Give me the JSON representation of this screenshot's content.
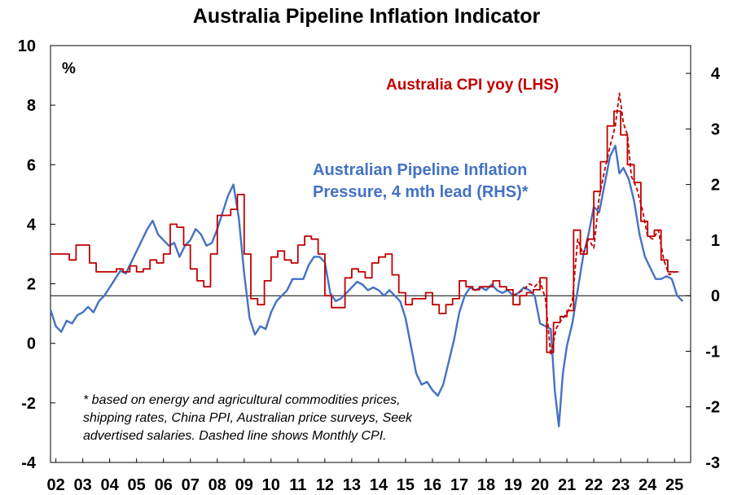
{
  "chart_data": {
    "type": "line",
    "title": "Australia Pipeline Inflation Indicator",
    "unit_label": "%",
    "x_tick_labels": [
      "02",
      "03",
      "04",
      "05",
      "06",
      "07",
      "08",
      "09",
      "10",
      "11",
      "12",
      "13",
      "14",
      "15",
      "16",
      "17",
      "18",
      "19",
      "20",
      "21",
      "22",
      "23",
      "24",
      "25"
    ],
    "x_range": [
      2001.8,
      2025.6
    ],
    "y_left": {
      "range": [
        -4,
        10
      ],
      "ticks": [
        -4,
        -2,
        0,
        2,
        4,
        6,
        8,
        10
      ]
    },
    "y_right": {
      "range": [
        -3,
        4.5
      ],
      "ticks": [
        -3,
        -2,
        -1,
        0,
        1,
        2,
        3,
        4
      ]
    },
    "zero_line_axis": "right",
    "grid": false,
    "annotation": [
      "* based on energy and agricultural commodities prices,",
      "shipping rates, China PPI, Australian price surveys, Seek",
      "advertised salaries. Dashed line shows Monthly CPI."
    ],
    "series": [
      {
        "name": "Australia CPI yoy (LHS)",
        "axis": "left",
        "style": "step",
        "color": "#c00000",
        "x": [
          2001.8,
          2002.5,
          2002.75,
          2003.25,
          2003.5,
          2003.75,
          2004.0,
          2004.25,
          2004.5,
          2004.75,
          2005.0,
          2005.25,
          2005.5,
          2005.75,
          2006.0,
          2006.25,
          2006.5,
          2006.75,
          2007.0,
          2007.25,
          2007.5,
          2007.75,
          2008.0,
          2008.25,
          2008.5,
          2008.75,
          2009.0,
          2009.25,
          2009.5,
          2009.75,
          2010.0,
          2010.25,
          2010.5,
          2010.75,
          2011.0,
          2011.25,
          2011.5,
          2011.75,
          2012.0,
          2012.25,
          2012.5,
          2012.75,
          2013.0,
          2013.25,
          2013.5,
          2013.75,
          2014.0,
          2014.25,
          2014.5,
          2014.75,
          2015.0,
          2015.25,
          2015.5,
          2015.75,
          2016.0,
          2016.25,
          2016.5,
          2016.75,
          2017.0,
          2017.25,
          2017.5,
          2017.75,
          2018.0,
          2018.25,
          2018.5,
          2018.75,
          2019.0,
          2019.25,
          2019.5,
          2019.75,
          2020.0,
          2020.25,
          2020.5,
          2020.75,
          2021.0,
          2021.25,
          2021.5,
          2021.75,
          2022.0,
          2022.25,
          2022.5,
          2022.75,
          2023.0,
          2023.25,
          2023.5,
          2023.75,
          2024.0,
          2024.25,
          2024.5,
          2024.75,
          2025.0
        ],
        "y": [
          3.0,
          2.8,
          3.3,
          2.7,
          2.4,
          2.4,
          2.4,
          2.5,
          2.4,
          2.6,
          2.4,
          2.5,
          2.8,
          2.7,
          3.0,
          4.0,
          3.9,
          3.3,
          2.5,
          2.1,
          1.9,
          3.0,
          4.3,
          4.3,
          4.5,
          5.0,
          3.0,
          1.5,
          1.3,
          2.1,
          2.9,
          3.1,
          2.8,
          2.7,
          3.3,
          3.6,
          3.5,
          3.0,
          1.6,
          1.2,
          1.2,
          2.2,
          2.5,
          2.4,
          2.2,
          2.7,
          2.9,
          3.0,
          2.3,
          1.7,
          1.3,
          1.5,
          1.5,
          1.7,
          1.3,
          1.0,
          1.3,
          1.5,
          2.1,
          1.9,
          1.8,
          1.9,
          1.9,
          2.1,
          1.9,
          1.8,
          1.3,
          1.6,
          1.7,
          1.8,
          2.2,
          -0.3,
          0.7,
          0.9,
          1.1,
          3.8,
          3.0,
          3.5,
          5.1,
          6.1,
          7.3,
          7.8,
          7.0,
          6.0,
          5.4,
          4.1,
          3.6,
          3.8,
          2.8,
          2.4,
          2.4
        ]
      },
      {
        "name": "Monthly CPI",
        "axis": "left",
        "style": "dashed",
        "color": "#c00000",
        "x": [
          2019.0,
          2019.2,
          2019.4,
          2019.6,
          2019.8,
          2020.0,
          2020.2,
          2020.4,
          2020.6,
          2020.8,
          2021.0,
          2021.2,
          2021.4,
          2021.6,
          2021.8,
          2022.0,
          2022.2,
          2022.4,
          2022.6,
          2022.8,
          2022.95,
          2023.1,
          2023.25,
          2023.4,
          2023.6,
          2023.8,
          2024.0,
          2024.2,
          2024.4,
          2024.6,
          2024.8,
          2025.0,
          2025.2
        ],
        "y": [
          1.6,
          1.7,
          1.8,
          2.0,
          1.9,
          2.1,
          1.5,
          -0.4,
          0.5,
          0.8,
          1.0,
          1.4,
          3.5,
          3.0,
          3.5,
          3.2,
          4.9,
          5.8,
          6.6,
          7.3,
          8.4,
          7.4,
          7.0,
          5.6,
          5.2,
          4.5,
          3.6,
          3.5,
          3.8,
          2.8,
          2.3,
          2.4,
          2.4
        ]
      },
      {
        "name": "Australian Pipeline Inflation Pressure, 4 mth lead (RHS)*",
        "axis": "right",
        "style": "solid",
        "color": "#4472c4",
        "x": [
          2001.8,
          2002.0,
          2002.2,
          2002.4,
          2002.6,
          2002.8,
          2003.0,
          2003.2,
          2003.4,
          2003.6,
          2003.8,
          2004.0,
          2004.2,
          2004.4,
          2004.6,
          2004.8,
          2005.0,
          2005.2,
          2005.4,
          2005.6,
          2005.8,
          2006.0,
          2006.2,
          2006.4,
          2006.6,
          2006.8,
          2007.0,
          2007.2,
          2007.4,
          2007.6,
          2007.8,
          2008.0,
          2008.2,
          2008.4,
          2008.6,
          2008.8,
          2009.0,
          2009.2,
          2009.4,
          2009.6,
          2009.8,
          2010.0,
          2010.2,
          2010.4,
          2010.6,
          2010.8,
          2011.0,
          2011.2,
          2011.4,
          2011.6,
          2011.8,
          2012.0,
          2012.2,
          2012.4,
          2012.6,
          2012.8,
          2013.0,
          2013.2,
          2013.4,
          2013.6,
          2013.8,
          2014.0,
          2014.2,
          2014.4,
          2014.6,
          2014.8,
          2015.0,
          2015.2,
          2015.4,
          2015.6,
          2015.8,
          2016.0,
          2016.2,
          2016.4,
          2016.6,
          2016.8,
          2017.0,
          2017.2,
          2017.4,
          2017.6,
          2017.8,
          2018.0,
          2018.2,
          2018.4,
          2018.6,
          2018.8,
          2019.0,
          2019.2,
          2019.4,
          2019.6,
          2019.8,
          2020.0,
          2020.2,
          2020.4,
          2020.55,
          2020.7,
          2020.85,
          2021.0,
          2021.2,
          2021.4,
          2021.6,
          2021.8,
          2022.0,
          2022.2,
          2022.4,
          2022.6,
          2022.8,
          2022.95,
          2023.1,
          2023.3,
          2023.5,
          2023.7,
          2023.9,
          2024.1,
          2024.3,
          2024.5,
          2024.7,
          2024.9,
          2025.1,
          2025.3
        ],
        "y": [
          -0.25,
          -0.55,
          -0.65,
          -0.45,
          -0.5,
          -0.35,
          -0.3,
          -0.2,
          -0.3,
          -0.1,
          0.0,
          0.15,
          0.3,
          0.45,
          0.4,
          0.6,
          0.8,
          1.0,
          1.2,
          1.35,
          1.1,
          1.0,
          0.9,
          0.95,
          0.7,
          0.9,
          1.0,
          1.2,
          1.1,
          0.9,
          0.95,
          1.2,
          1.5,
          1.8,
          2.0,
          1.4,
          0.4,
          -0.4,
          -0.7,
          -0.55,
          -0.6,
          -0.3,
          -0.1,
          0.0,
          0.1,
          0.3,
          0.3,
          0.3,
          0.55,
          0.7,
          0.7,
          0.6,
          0.05,
          -0.1,
          -0.05,
          0.05,
          0.15,
          0.25,
          0.2,
          0.1,
          0.15,
          0.1,
          0.0,
          0.1,
          0.0,
          -0.1,
          -0.4,
          -0.9,
          -1.4,
          -1.6,
          -1.55,
          -1.7,
          -1.8,
          -1.6,
          -1.2,
          -0.8,
          -0.3,
          0.0,
          0.15,
          0.1,
          0.15,
          0.1,
          0.2,
          0.1,
          0.05,
          0.1,
          0.0,
          0.05,
          0.15,
          0.1,
          0.0,
          -0.5,
          -0.55,
          -0.6,
          -1.7,
          -2.35,
          -1.4,
          -0.9,
          -0.5,
          0.1,
          0.7,
          1.1,
          1.6,
          1.5,
          2.0,
          2.5,
          2.7,
          2.2,
          2.3,
          2.1,
          1.7,
          1.1,
          0.7,
          0.5,
          0.3,
          0.3,
          0.35,
          0.3,
          0.0,
          -0.1
        ]
      }
    ]
  }
}
